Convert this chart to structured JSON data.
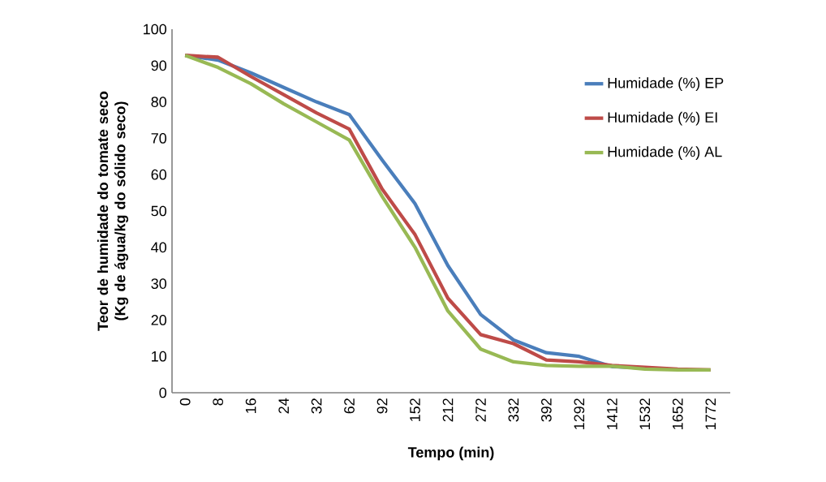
{
  "chart_data": {
    "type": "line",
    "xlabel": "Tempo (min)",
    "ylabel": "Teor de humidade do tomate seco (Kg de água/kg do sólido seco)",
    "categories": [
      "0",
      "8",
      "16",
      "24",
      "32",
      "62",
      "92",
      "152",
      "212",
      "272",
      "332",
      "392",
      "1292",
      "1412",
      "1532",
      "1652",
      "1772"
    ],
    "ylim": [
      0,
      100
    ],
    "yticks": [
      0,
      10,
      20,
      30,
      40,
      50,
      60,
      70,
      80,
      90,
      100
    ],
    "grid": false,
    "legend": "right",
    "marker": "none",
    "line_style": "solid",
    "series": [
      {
        "name": "Humidade (%) EP",
        "color": "#4a7ebb",
        "values": [
          92.8,
          91.5,
          88,
          84,
          80,
          76.5,
          64,
          52,
          35,
          21.5,
          14.5,
          11,
          10,
          7.2,
          6.8,
          null,
          null
        ]
      },
      {
        "name": "Humidade (%) EI",
        "color": "#be4b48",
        "values": [
          92.8,
          92.3,
          87,
          82,
          77,
          72.5,
          56,
          43.5,
          26,
          16,
          13.5,
          9,
          8.5,
          7.5,
          7,
          6.5,
          6.3
        ]
      },
      {
        "name": "Humidade (%) AL",
        "color": "#98b954",
        "values": [
          92.8,
          89.5,
          85,
          79.5,
          74.5,
          69.5,
          54,
          40,
          22.5,
          12,
          8.5,
          7.5,
          7.3,
          7.3,
          6.5,
          6.3,
          6.3
        ]
      }
    ]
  }
}
